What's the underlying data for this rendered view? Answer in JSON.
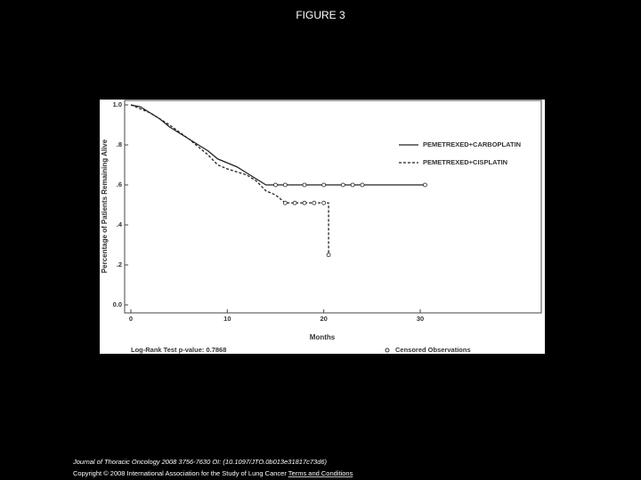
{
  "title": "FIGURE 3",
  "chart_data": {
    "type": "line",
    "ylabel": "Percentage of Patients Remaining Alive",
    "xlabel": "Months",
    "xlim": [
      0,
      42
    ],
    "ylim": [
      0,
      1
    ],
    "xticks": [
      0,
      10,
      20,
      30
    ],
    "yticks": [
      {
        "value": 0,
        "label": "0.0"
      },
      {
        "value": 0.2,
        "label": ".2"
      },
      {
        "value": 0.4,
        "label": ".4"
      },
      {
        "value": 0.6,
        "label": ".6"
      },
      {
        "value": 0.8,
        "label": ".8"
      },
      {
        "value": 1,
        "label": "1.0"
      }
    ],
    "legend_position": "upper right",
    "series": [
      {
        "name": "PEMETREXED+CARBOPLATIN",
        "color": "#222222",
        "dash": false,
        "x": [
          0,
          1,
          2,
          3,
          4,
          5,
          6,
          7,
          8,
          9,
          10,
          11,
          12,
          13,
          14,
          30.5
        ],
        "values": [
          1.0,
          0.99,
          0.96,
          0.93,
          0.89,
          0.86,
          0.83,
          0.8,
          0.77,
          0.73,
          0.71,
          0.69,
          0.66,
          0.63,
          0.6,
          0.6
        ],
        "censored_x": [
          15,
          16,
          18,
          20,
          22,
          23,
          24,
          30.5
        ],
        "censored_values": [
          0.6,
          0.6,
          0.6,
          0.6,
          0.6,
          0.6,
          0.6,
          0.6
        ]
      },
      {
        "name": "PEMETREXED+CISPLATIN",
        "color": "#222222",
        "dash": true,
        "x": [
          0,
          2,
          4,
          6,
          7,
          8,
          9,
          10,
          12,
          13,
          14,
          15,
          16,
          20.5,
          20.5
        ],
        "values": [
          1.0,
          0.96,
          0.9,
          0.83,
          0.79,
          0.75,
          0.7,
          0.68,
          0.65,
          0.62,
          0.57,
          0.55,
          0.51,
          0.51,
          0.25
        ],
        "censored_x": [
          16,
          17,
          18,
          19,
          20,
          20.5
        ],
        "censored_values": [
          0.51,
          0.51,
          0.51,
          0.51,
          0.51,
          0.25
        ]
      }
    ],
    "annotation": "Log-Rank Test p-value: 0.7868",
    "censored_label": "Censored Observations"
  },
  "footer": {
    "citation": "Journal of Thoracic Oncology 2008 3756-7630 OI: (10.1097/JTO.0b013e31817c73d6)",
    "copyright": "Copyright © 2008 International Association for the Study of Lung Cancer",
    "link": "Terms and Conditions"
  }
}
